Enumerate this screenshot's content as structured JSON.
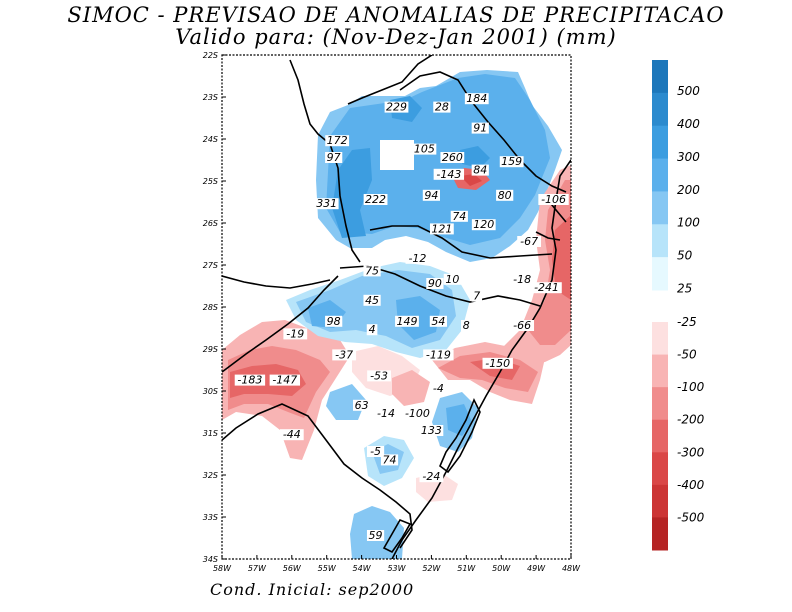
{
  "title_line1": "SIMOC - PREVISAO DE ANOMALIAS DE PRECIPITACAO",
  "title_line2": "Valido para: (Nov-Dez-Jan 2001) (mm)",
  "footer": "Cond. Inicial: sep2000",
  "map": {
    "lat_labels": [
      "22S",
      "23S",
      "24S",
      "25S",
      "26S",
      "27S",
      "28S",
      "29S",
      "30S",
      "31S",
      "32S",
      "33S",
      "34S"
    ],
    "lon_labels": [
      "58W",
      "57W",
      "56W",
      "55W",
      "54W",
      "53W",
      "52W",
      "51W",
      "50W",
      "49W",
      "48W"
    ],
    "lon_range": [
      -58,
      -48
    ],
    "lat_range": [
      -34,
      -22
    ]
  },
  "anomaly_labels": [
    {
      "text": "229",
      "lon": -53.0,
      "lat": -23.3
    },
    {
      "text": "28",
      "lon": -51.7,
      "lat": -23.3
    },
    {
      "text": "184",
      "lon": -50.7,
      "lat": -23.1
    },
    {
      "text": "91",
      "lon": -50.6,
      "lat": -23.8
    },
    {
      "text": "172",
      "lon": -54.7,
      "lat": -24.1
    },
    {
      "text": "97",
      "lon": -54.8,
      "lat": -24.5
    },
    {
      "text": "105",
      "lon": -52.2,
      "lat": -24.3
    },
    {
      "text": "260",
      "lon": -51.4,
      "lat": -24.5
    },
    {
      "text": "159",
      "lon": -49.7,
      "lat": -24.6
    },
    {
      "text": "84",
      "lon": -50.6,
      "lat": -24.8
    },
    {
      "text": "-143",
      "lon": -51.5,
      "lat": -24.9
    },
    {
      "text": "94",
      "lon": -52.0,
      "lat": -25.4
    },
    {
      "text": "80",
      "lon": -49.9,
      "lat": -25.4
    },
    {
      "text": "-106",
      "lon": -48.5,
      "lat": -25.5
    },
    {
      "text": "331",
      "lon": -55.0,
      "lat": -25.6
    },
    {
      "text": "222",
      "lon": -53.6,
      "lat": -25.5
    },
    {
      "text": "74",
      "lon": -51.2,
      "lat": -25.9
    },
    {
      "text": "120",
      "lon": -50.5,
      "lat": -26.1
    },
    {
      "text": "121",
      "lon": -51.7,
      "lat": -26.2
    },
    {
      "text": "-67",
      "lon": -49.2,
      "lat": -26.5
    },
    {
      "text": "-12",
      "lon": -52.4,
      "lat": -26.9
    },
    {
      "text": "75",
      "lon": -53.7,
      "lat": -27.2
    },
    {
      "text": "90",
      "lon": -51.9,
      "lat": -27.5
    },
    {
      "text": "10",
      "lon": -51.4,
      "lat": -27.4
    },
    {
      "text": "-18",
      "lon": -49.4,
      "lat": -27.4
    },
    {
      "text": "-241",
      "lon": -48.7,
      "lat": -27.6
    },
    {
      "text": "7",
      "lon": -50.7,
      "lat": -27.8
    },
    {
      "text": "45",
      "lon": -53.7,
      "lat": -27.9
    },
    {
      "text": "98",
      "lon": -54.8,
      "lat": -28.4
    },
    {
      "text": "149",
      "lon": -52.7,
      "lat": -28.4
    },
    {
      "text": "54",
      "lon": -51.8,
      "lat": -28.4
    },
    {
      "text": "8",
      "lon": -51.0,
      "lat": -28.5
    },
    {
      "text": "-66",
      "lon": -49.4,
      "lat": -28.5
    },
    {
      "text": "4",
      "lon": -53.7,
      "lat": -28.6
    },
    {
      "text": "-19",
      "lon": -55.9,
      "lat": -28.7
    },
    {
      "text": "-37",
      "lon": -54.5,
      "lat": -29.2
    },
    {
      "text": "-119",
      "lon": -51.8,
      "lat": -29.2
    },
    {
      "text": "-150",
      "lon": -50.1,
      "lat": -29.4
    },
    {
      "text": "-53",
      "lon": -53.5,
      "lat": -29.7
    },
    {
      "text": "-183",
      "lon": -57.2,
      "lat": -29.8
    },
    {
      "text": "-147",
      "lon": -56.2,
      "lat": -29.8
    },
    {
      "text": "-4",
      "lon": -51.8,
      "lat": -30.0
    },
    {
      "text": "63",
      "lon": -54.0,
      "lat": -30.4
    },
    {
      "text": "-14",
      "lon": -53.3,
      "lat": -30.6
    },
    {
      "text": "-100",
      "lon": -52.4,
      "lat": -30.6
    },
    {
      "text": "133",
      "lon": -52.0,
      "lat": -31.0
    },
    {
      "text": "-44",
      "lon": -56.0,
      "lat": -31.1
    },
    {
      "text": "-5",
      "lon": -53.6,
      "lat": -31.5
    },
    {
      "text": "74",
      "lon": -53.2,
      "lat": -31.7
    },
    {
      "text": "-24",
      "lon": -52.0,
      "lat": -32.1
    },
    {
      "text": "59",
      "lon": -53.6,
      "lat": -33.5
    }
  ],
  "colorbar": {
    "positive_labels": [
      "500",
      "400",
      "300",
      "200",
      "100",
      "50",
      "25"
    ],
    "positive_colors": [
      "#1d77bb",
      "#2b8ace",
      "#3c9de0",
      "#5bb0ec",
      "#86c7f3",
      "#b7e4fa",
      "#e6f9ff"
    ],
    "negative_labels": [
      "-25",
      "-50",
      "-100",
      "-200",
      "-300",
      "-400",
      "-500"
    ],
    "negative_colors": [
      "#fde0e0",
      "#f8b4b4",
      "#f08c8c",
      "#e66666",
      "#da4747",
      "#cc3535",
      "#b52424"
    ]
  }
}
